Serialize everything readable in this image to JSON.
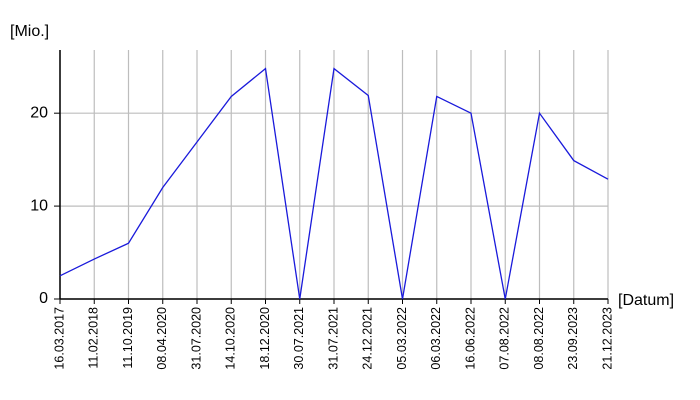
{
  "chart_data": {
    "type": "line",
    "y_label": "[Mio.]",
    "x_label": "[Datum]",
    "categories": [
      "16.03.2017",
      "11.02.2018",
      "11.10.2019",
      "08.04.2020",
      "31.07.2020",
      "14.10.2020",
      "18.12.2020",
      "30.07.2021",
      "31.07.2021",
      "24.12.2021",
      "05.03.2022",
      "06.03.2022",
      "16.06.2022",
      "07.08.2022",
      "08.08.2022",
      "23.09.2023",
      "21.12.2023"
    ],
    "series": [
      {
        "color": "#1a1adb",
        "values": [
          2.5,
          4.3,
          6.0,
          12.0,
          16.9,
          21.8,
          24.8,
          0,
          24.8,
          21.9,
          0,
          21.8,
          20,
          0,
          20,
          14.9,
          12.9
        ]
      }
    ],
    "ylim": [
      0,
      26.8
    ],
    "yticks": [
      0,
      10,
      20
    ],
    "grid": true
  }
}
